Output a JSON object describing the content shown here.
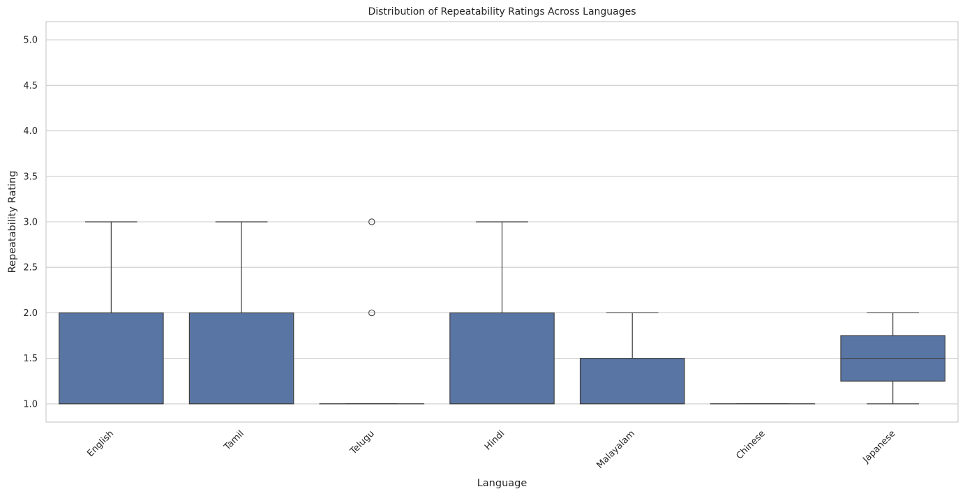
{
  "chart_data": {
    "type": "box",
    "title": "Distribution of Repeatability Ratings Across Languages",
    "xlabel": "Language",
    "ylabel": "Repeatability Rating",
    "ylim": [
      0.8,
      5.2
    ],
    "yticks": [
      1.0,
      1.5,
      2.0,
      2.5,
      3.0,
      3.5,
      4.0,
      4.5,
      5.0
    ],
    "ytick_labels": [
      "1.0",
      "1.5",
      "2.0",
      "2.5",
      "3.0",
      "3.5",
      "4.0",
      "4.5",
      "5.0"
    ],
    "grid": true,
    "box_color": "#5975a4",
    "categories": [
      "English",
      "Tamil",
      "Telugu",
      "Hindi",
      "Malayalam",
      "Chinese",
      "Japanese"
    ],
    "boxes": [
      {
        "category": "English",
        "whislo": 1.0,
        "q1": 1.0,
        "median": 1.0,
        "q3": 2.0,
        "whishi": 3.0,
        "fliers": []
      },
      {
        "category": "Tamil",
        "whislo": 1.0,
        "q1": 1.0,
        "median": 1.0,
        "q3": 2.0,
        "whishi": 3.0,
        "fliers": []
      },
      {
        "category": "Telugu",
        "whislo": 1.0,
        "q1": 1.0,
        "median": 1.0,
        "q3": 1.0,
        "whishi": 1.0,
        "fliers": [
          2.0,
          3.0
        ]
      },
      {
        "category": "Hindi",
        "whislo": 1.0,
        "q1": 1.0,
        "median": 1.0,
        "q3": 2.0,
        "whishi": 3.0,
        "fliers": []
      },
      {
        "category": "Malayalam",
        "whislo": 1.0,
        "q1": 1.0,
        "median": 1.0,
        "q3": 1.5,
        "whishi": 2.0,
        "fliers": []
      },
      {
        "category": "Chinese",
        "whislo": 1.0,
        "q1": 1.0,
        "median": 1.0,
        "q3": 1.0,
        "whishi": 1.0,
        "fliers": []
      },
      {
        "category": "Japanese",
        "whislo": 1.0,
        "q1": 1.25,
        "median": 1.5,
        "q3": 1.75,
        "whishi": 2.0,
        "fliers": []
      }
    ]
  }
}
